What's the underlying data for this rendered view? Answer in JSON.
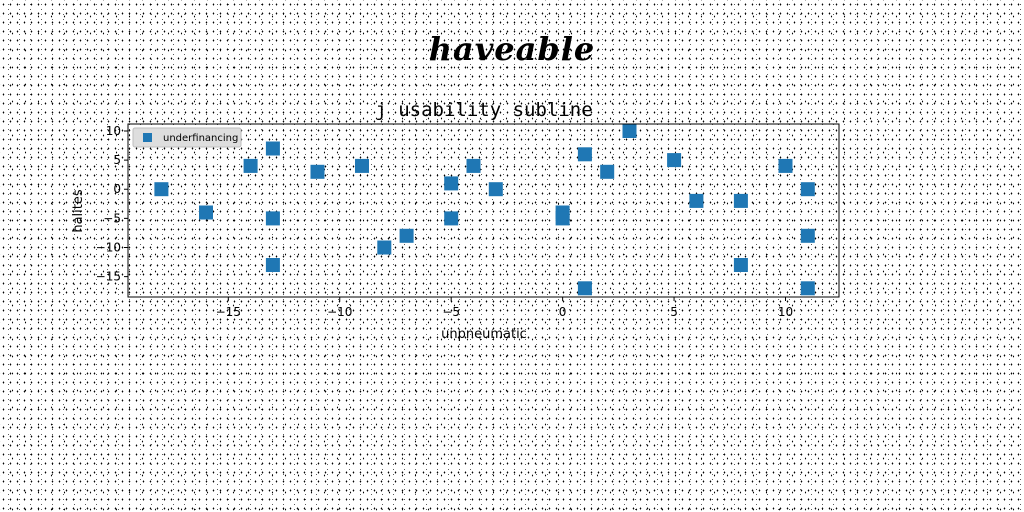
{
  "figure_title": "haveable",
  "chart_data": {
    "type": "scatter",
    "title": "j usability subline",
    "xlabel": "unpneumatic",
    "ylabel": "halites",
    "xlim": [
      -19.5,
      12.4
    ],
    "ylim": [
      -18.5,
      11.2
    ],
    "xticks": [
      -15,
      -10,
      -5,
      0,
      5,
      10
    ],
    "xtick_labels": [
      "−15",
      "−10",
      "−5",
      "0",
      "5",
      "10"
    ],
    "yticks": [
      -15,
      -10,
      -5,
      0,
      5,
      10
    ],
    "ytick_labels": [
      "−15",
      "−10",
      "−5",
      "0",
      "5",
      "10"
    ],
    "grid": false,
    "legend_position": "top-left",
    "marker": "square",
    "color": "#1f77b4",
    "series": [
      {
        "name": "underfinancing",
        "points": [
          [
            -18,
            0
          ],
          [
            -16,
            -4
          ],
          [
            -14,
            4
          ],
          [
            -13,
            7
          ],
          [
            -13,
            -5
          ],
          [
            -13,
            -13
          ],
          [
            -11,
            3
          ],
          [
            -9,
            4
          ],
          [
            -8,
            -10
          ],
          [
            -7,
            -8
          ],
          [
            -5,
            1
          ],
          [
            -5,
            -5
          ],
          [
            -4,
            4
          ],
          [
            -3,
            0
          ],
          [
            0,
            -4
          ],
          [
            0,
            -5
          ],
          [
            1,
            6
          ],
          [
            1,
            -17
          ],
          [
            2,
            3
          ],
          [
            3,
            10
          ],
          [
            5,
            5
          ],
          [
            6,
            -2
          ],
          [
            8,
            -2
          ],
          [
            8,
            -13
          ],
          [
            10,
            4
          ],
          [
            11,
            0
          ],
          [
            11,
            -8
          ],
          [
            11,
            -17
          ]
        ]
      }
    ]
  }
}
